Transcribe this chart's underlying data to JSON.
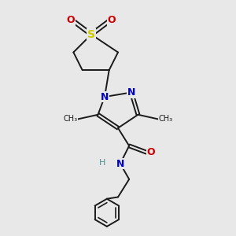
{
  "bg_color": "#e8e8e8",
  "bond_color": "#1a1a1a",
  "N_color": "#0000cc",
  "O_color": "#cc0000",
  "S_color": "#cccc00",
  "H_color": "#4a9090",
  "lw": 1.4,
  "xlim": [
    0,
    10
  ],
  "ylim": [
    0,
    10.5
  ]
}
